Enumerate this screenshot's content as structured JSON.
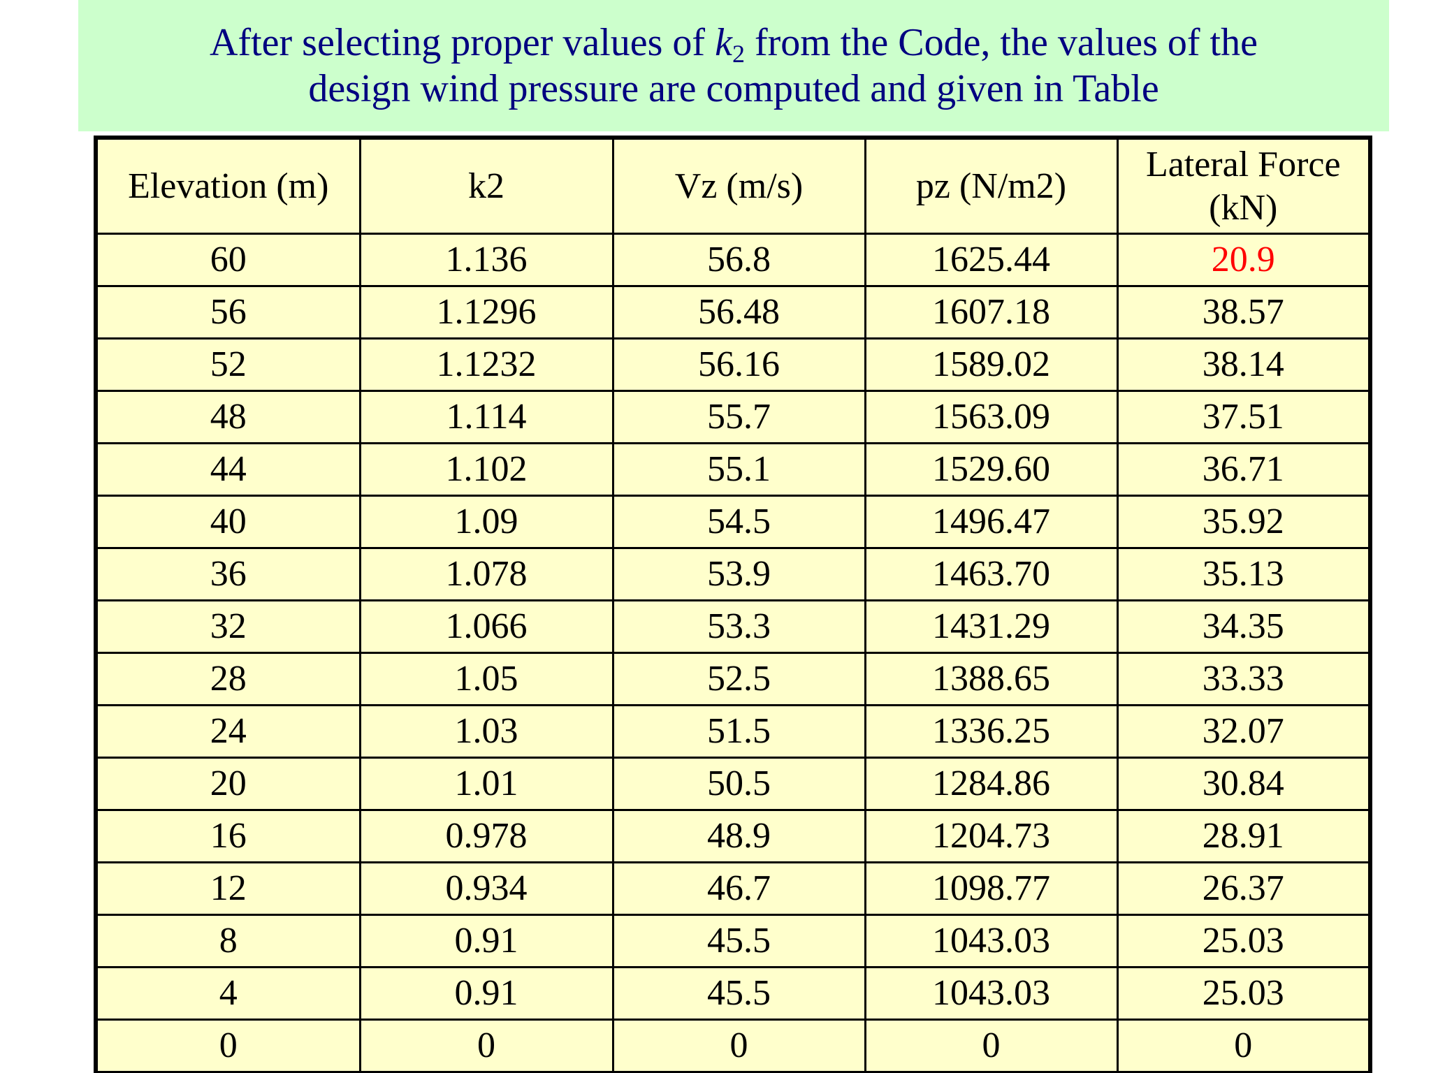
{
  "title": {
    "line1_before": "After selecting proper values of ",
    "line1_var": "k",
    "line1_sub": "2",
    "line1_after": " from the Code, the values of the",
    "line2": "design wind pressure are computed and given in Table"
  },
  "table": {
    "headers": [
      "Elevation (m)",
      "k2",
      "Vz (m/s)",
      "pz (N/m2)",
      "Lateral Force (kN)"
    ],
    "highlight_color": "#ff0000",
    "rows": [
      [
        "60",
        "1.136",
        "56.8",
        "1625.44",
        "20.9"
      ],
      [
        "56",
        "1.1296",
        "56.48",
        "1607.18",
        "38.57"
      ],
      [
        "52",
        "1.1232",
        "56.16",
        "1589.02",
        "38.14"
      ],
      [
        "48",
        "1.114",
        "55.7",
        "1563.09",
        "37.51"
      ],
      [
        "44",
        "1.102",
        "55.1",
        "1529.60",
        "36.71"
      ],
      [
        "40",
        "1.09",
        "54.5",
        "1496.47",
        "35.92"
      ],
      [
        "36",
        "1.078",
        "53.9",
        "1463.70",
        "35.13"
      ],
      [
        "32",
        "1.066",
        "53.3",
        "1431.29",
        "34.35"
      ],
      [
        "28",
        "1.05",
        "52.5",
        "1388.65",
        "33.33"
      ],
      [
        "24",
        "1.03",
        "51.5",
        "1336.25",
        "32.07"
      ],
      [
        "20",
        "1.01",
        "50.5",
        "1284.86",
        "30.84"
      ],
      [
        "16",
        "0.978",
        "48.9",
        "1204.73",
        "28.91"
      ],
      [
        "12",
        "0.934",
        "46.7",
        "1098.77",
        "26.37"
      ],
      [
        "8",
        "0.91",
        "45.5",
        "1043.03",
        "25.03"
      ],
      [
        "4",
        "0.91",
        "45.5",
        "1043.03",
        "25.03"
      ],
      [
        "0",
        "0",
        "0",
        "0",
        "0"
      ]
    ]
  }
}
